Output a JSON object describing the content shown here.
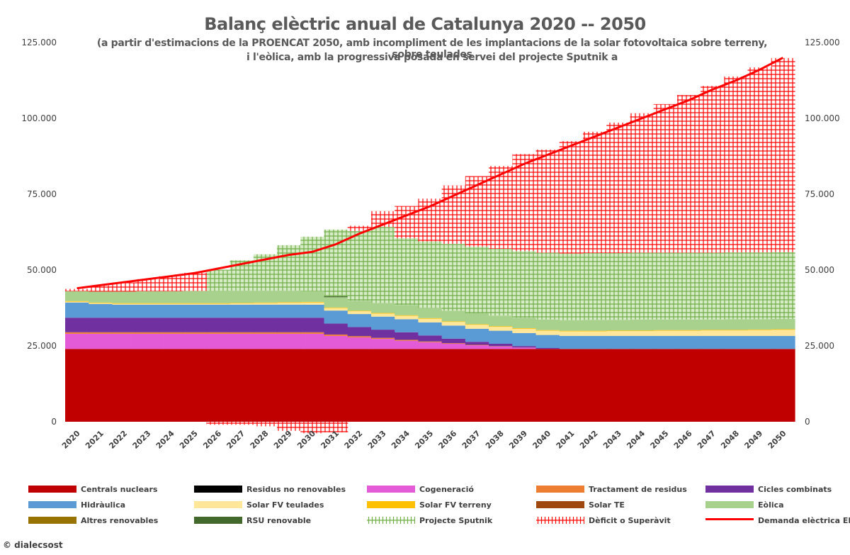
{
  "chart_data": {
    "type": "area",
    "title": "Balanç elèctric anual de Catalunya 2020 -- 2050",
    "subtitle_line1": "(a partir d'estimacions de la PROENCAT 2050, amb incompliment de les implantacions de la solar fotovoltaica sobre terreny, sobre teulades",
    "subtitle_line2": "i l'eòlica, amb la progressiva posada en servei del projecte Sputnik a",
    "x": [
      "2020",
      "2021",
      "2022",
      "2023",
      "2024",
      "2025",
      "2026",
      "2027",
      "2028",
      "2029",
      "2030",
      "2031",
      "2032",
      "2033",
      "2034",
      "2035",
      "2036",
      "2037",
      "2038",
      "2039",
      "2040",
      "2041",
      "2042",
      "2043",
      "2044",
      "2045",
      "2046",
      "2047",
      "2048",
      "2049",
      "2050"
    ],
    "ylim": [
      0,
      125000
    ],
    "yticks": [
      "0",
      "25.000",
      "50.000",
      "75.000",
      "100.000",
      "125.000"
    ],
    "ytick_values": [
      0,
      25000,
      50000,
      75000,
      100000,
      125000
    ],
    "series": [
      {
        "name": "Centrals nuclears",
        "color": "#c00000",
        "values": [
          24000,
          24000,
          24000,
          24000,
          24000,
          24000,
          24000,
          24000,
          24000,
          24000,
          24000,
          24000,
          24000,
          24000,
          24000,
          24000,
          24000,
          24000,
          24000,
          24000,
          24000,
          24000,
          24000,
          24000,
          24000,
          24000,
          24000,
          24000,
          24000,
          24000,
          24000
        ]
      },
      {
        "name": "Residus no renovables",
        "color": "#000000",
        "values": [
          0,
          0,
          0,
          0,
          0,
          0,
          0,
          0,
          0,
          0,
          0,
          0,
          0,
          0,
          0,
          0,
          0,
          0,
          0,
          0,
          0,
          0,
          0,
          0,
          0,
          0,
          0,
          0,
          0,
          0,
          0
        ]
      },
      {
        "name": "Cogeneració",
        "color": "#e35bd6",
        "values": [
          5000,
          5000,
          5000,
          5000,
          5000,
          5000,
          5000,
          5000,
          5000,
          5000,
          5000,
          4300,
          3800,
          3300,
          2700,
          2200,
          1700,
          1200,
          800,
          400,
          0,
          0,
          0,
          0,
          0,
          0,
          0,
          0,
          0,
          0,
          0
        ]
      },
      {
        "name": "Tractament de residus",
        "color": "#ed7d31",
        "values": [
          500,
          500,
          500,
          500,
          500,
          500,
          500,
          500,
          500,
          500,
          500,
          450,
          400,
          350,
          300,
          250,
          200,
          150,
          100,
          50,
          0,
          0,
          0,
          0,
          0,
          0,
          0,
          0,
          0,
          0,
          0
        ]
      },
      {
        "name": "Cicles combinats",
        "color": "#7030a0",
        "values": [
          4800,
          4800,
          4800,
          4800,
          4800,
          4800,
          4800,
          4800,
          4800,
          4800,
          4800,
          3600,
          3000,
          2700,
          2500,
          2000,
          1500,
          1000,
          800,
          500,
          300,
          0,
          0,
          0,
          0,
          0,
          0,
          0,
          0,
          0,
          0
        ]
      },
      {
        "name": "Hidràulica",
        "color": "#5b9bd5",
        "values": [
          5000,
          4500,
          4300,
          4300,
          4300,
          4300,
          4300,
          4300,
          4300,
          4300,
          4300,
          4300,
          4300,
          4300,
          4300,
          4300,
          4300,
          4300,
          4300,
          4300,
          4300,
          4300,
          4300,
          4300,
          4300,
          4300,
          4300,
          4300,
          4300,
          4300,
          4300
        ]
      },
      {
        "name": "Solar FV teulades",
        "color": "#ffe699",
        "values": [
          300,
          300,
          300,
          300,
          300,
          300,
          300,
          400,
          500,
          600,
          700,
          800,
          900,
          1000,
          1100,
          1200,
          1200,
          1300,
          1300,
          1400,
          1400,
          1500,
          1500,
          1600,
          1600,
          1700,
          1700,
          1800,
          1800,
          1900,
          2000
        ]
      },
      {
        "name": "Solar FV terreny",
        "color": "#ffc000",
        "values": [
          200,
          200,
          200,
          200,
          200,
          200,
          200,
          200,
          200,
          200,
          200,
          200,
          200,
          200,
          200,
          200,
          200,
          200,
          200,
          200,
          200,
          200,
          200,
          200,
          200,
          200,
          200,
          200,
          200,
          200,
          200
        ]
      },
      {
        "name": "Solar TE",
        "color": "#9e480e",
        "values": [
          0,
          0,
          0,
          0,
          0,
          0,
          0,
          0,
          0,
          0,
          0,
          0,
          0,
          0,
          0,
          0,
          0,
          0,
          0,
          0,
          0,
          0,
          0,
          0,
          0,
          0,
          0,
          0,
          0,
          0,
          0
        ]
      },
      {
        "name": "Eòlica",
        "color": "#a9d18e",
        "values": [
          3200,
          3600,
          3800,
          3900,
          3900,
          4000,
          4000,
          4000,
          3900,
          3800,
          3500,
          3400,
          3300,
          3300,
          3400,
          3300,
          3500,
          3600,
          3500,
          3400,
          3500,
          3500,
          3600,
          3500,
          3600,
          3500,
          3500,
          3400,
          3500,
          3400,
          3400
        ]
      },
      {
        "name": "Altres renovables",
        "color": "#997300",
        "values": [
          0,
          0,
          0,
          0,
          0,
          0,
          0,
          0,
          0,
          0,
          0,
          0,
          0,
          0,
          0,
          0,
          0,
          0,
          0,
          0,
          0,
          0,
          0,
          0,
          0,
          0,
          0,
          0,
          0,
          0,
          0
        ]
      },
      {
        "name": "RSU renovable",
        "color": "#43682b",
        "values": [
          0,
          0,
          0,
          0,
          0,
          0,
          0,
          0,
          0,
          0,
          0,
          300,
          0,
          0,
          0,
          0,
          0,
          0,
          0,
          0,
          0,
          0,
          0,
          0,
          0,
          0,
          0,
          0,
          0,
          0,
          0
        ]
      },
      {
        "name": "Projecte Sputnik",
        "color": "#70ad47",
        "pattern": "plus-green",
        "values": [
          0,
          0,
          0,
          0,
          0,
          0,
          7000,
          10000,
          12000,
          15000,
          18000,
          22000,
          23000,
          25000,
          22000,
          22000,
          22000,
          22000,
          22000,
          22000,
          22000,
          22000,
          22000,
          22000,
          22000,
          22000,
          22000,
          22000,
          22000,
          22000,
          22000
        ]
      },
      {
        "name": "Dèficit o Superàvit",
        "color": "#ff0000",
        "pattern": "plus-red",
        "values": [
          800,
          2000,
          3000,
          4000,
          5000,
          6000,
          -1000,
          -1000,
          -1500,
          -3000,
          -3800,
          -3500,
          1700,
          5300,
          10600,
          14100,
          19300,
          23200,
          27300,
          32000,
          34000,
          37000,
          40000,
          43000,
          46000,
          49000,
          52000,
          55000,
          58000,
          61000,
          64000
        ]
      },
      {
        "name": "Demanda elèctrica EBC",
        "color": "#ff0000",
        "type": "line",
        "values": [
          44000,
          45000,
          46000,
          47000,
          48000,
          49000,
          50500,
          52000,
          53500,
          55000,
          56000,
          58500,
          62000,
          65000,
          68000,
          71000,
          74500,
          78000,
          81500,
          85000,
          88000,
          91000,
          94000,
          97000,
          100000,
          103000,
          106000,
          109500,
          112500,
          116000,
          120000
        ]
      }
    ]
  },
  "credit": "© dialecsost"
}
